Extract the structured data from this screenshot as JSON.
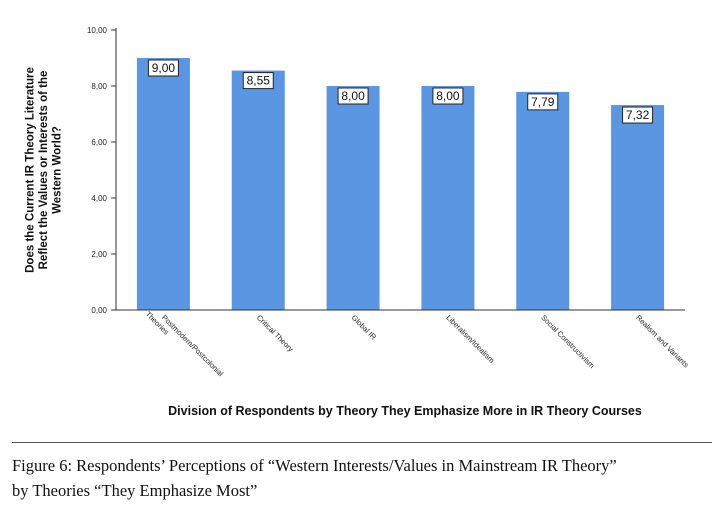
{
  "chart_data": {
    "type": "bar",
    "categories": [
      "Postmodern/Postcolonial Theories",
      "Critical Theory",
      "Global IR",
      "Liberalism/Idealism",
      "Social Constructivism",
      "Realism and Variants"
    ],
    "values": [
      9.0,
      8.55,
      8.0,
      8.0,
      7.79,
      7.32
    ],
    "data_labels": [
      "9,00",
      "8,55",
      "8,00",
      "8,00",
      "7,79",
      "7,32"
    ],
    "ylabel": "Does the Current IR Theory Literature Reflect the Values or Interests of the Western World?",
    "xlabel": "Division of Respondents by Theory They Emphasize More in IR Theory Courses",
    "ylim": [
      0,
      10
    ],
    "yticks": [
      "0,00",
      "2,00",
      "4,00",
      "6,00",
      "8,00",
      "10,00"
    ],
    "bar_color": "#5b96e2",
    "grid": false
  },
  "caption": {
    "line1": "Figure 6: Respondents’ Perceptions of “Western Interests/Values in Mainstream IR Theory”",
    "line2": "by Theories “They Emphasize Most”"
  }
}
